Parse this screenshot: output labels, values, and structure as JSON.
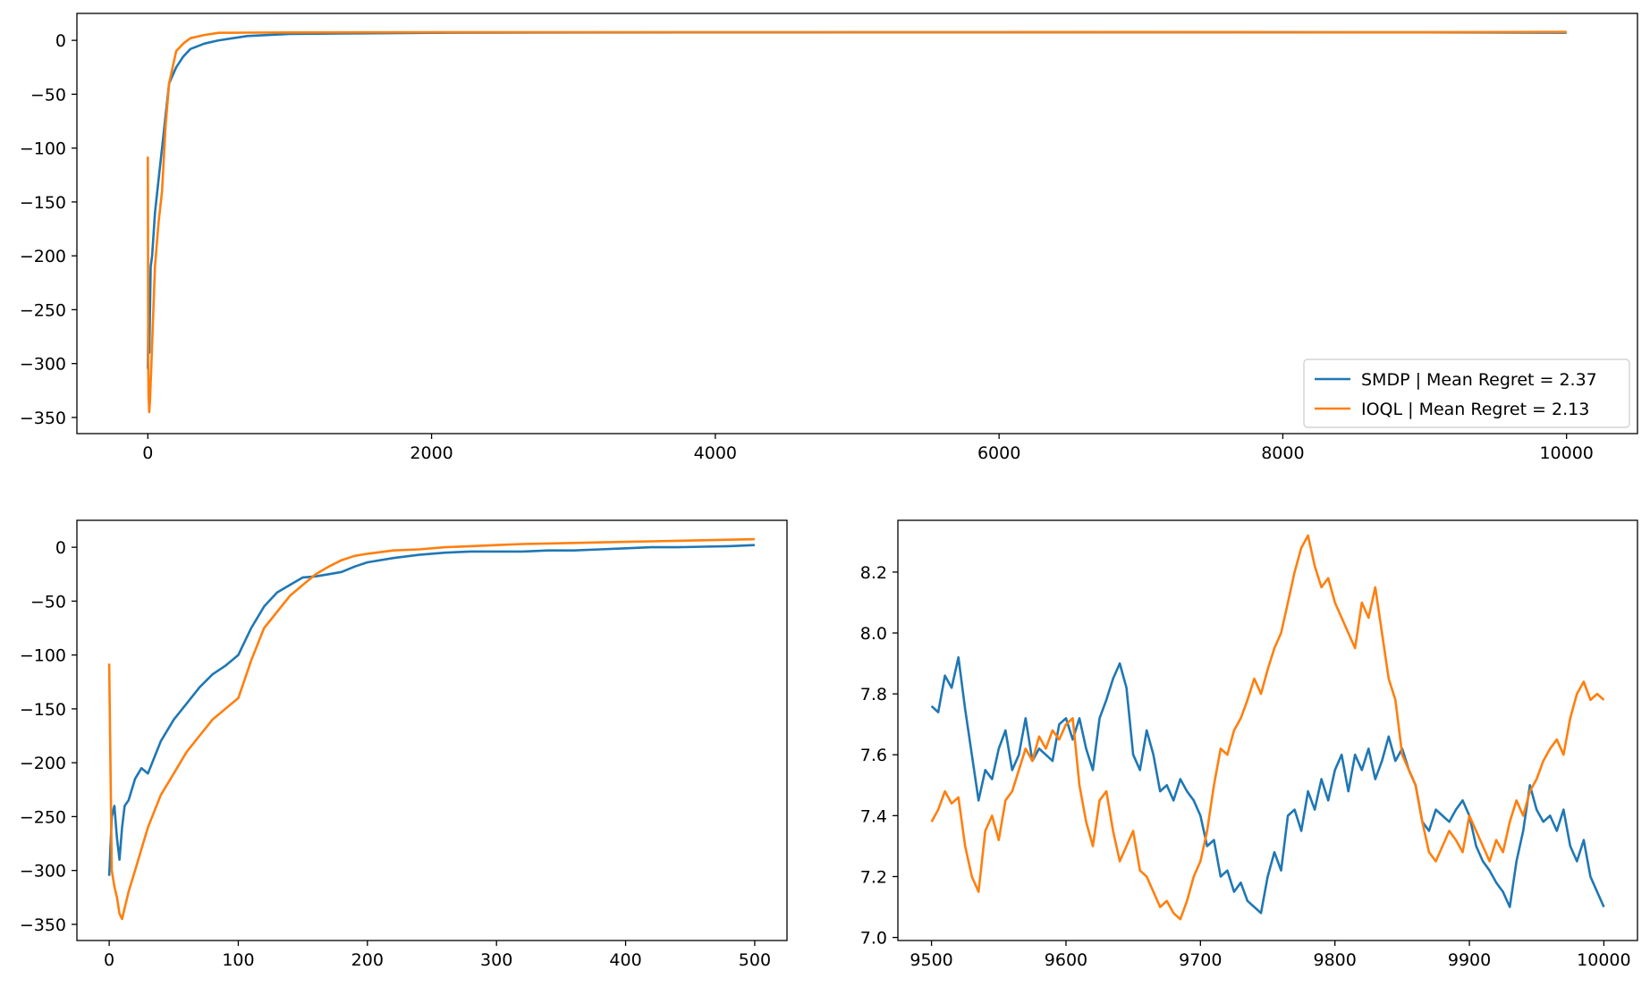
{
  "chart_data": [
    {
      "panel": "top",
      "type": "line",
      "title": "",
      "xlabel": "",
      "ylabel": "",
      "xlim": [
        -500,
        10500
      ],
      "ylim": [
        -365,
        25
      ],
      "xticks": [
        0,
        2000,
        4000,
        6000,
        8000,
        10000
      ],
      "xtick_labels": [
        "0",
        "2000",
        "4000",
        "6000",
        "8000",
        "10000"
      ],
      "yticks": [
        0,
        -50,
        -100,
        -150,
        -200,
        -250,
        -300,
        -350
      ],
      "ytick_labels": [
        "0",
        "−50",
        "−100",
        "−150",
        "−200",
        "−250",
        "−300",
        "−350"
      ],
      "grid": false,
      "legend": {
        "placement": "lower right",
        "entries": [
          {
            "label": "SMDP | Mean Regret = 2.37",
            "color": "#1f77b4"
          },
          {
            "label": "IOQL | Mean Regret = 2.13",
            "color": "#ff7f0e"
          }
        ]
      },
      "series": [
        {
          "name": "SMDP | Mean Regret = 2.37",
          "color": "#1f77b4",
          "x": [
            0,
            5,
            10,
            20,
            30,
            50,
            75,
            100,
            150,
            200,
            250,
            300,
            400,
            500,
            700,
            1000,
            1500,
            2000,
            3000,
            4000,
            5000,
            6000,
            7000,
            8000,
            9000,
            10000
          ],
          "y": [
            -305,
            -240,
            -290,
            -210,
            -200,
            -160,
            -130,
            -100,
            -40,
            -25,
            -15,
            -8,
            -3,
            0,
            4,
            6,
            6.5,
            7,
            7.3,
            7.4,
            7.5,
            7.5,
            7.5,
            7.5,
            7.4,
            7.1
          ]
        },
        {
          "name": "IOQL | Mean Regret = 2.13",
          "color": "#ff7f0e",
          "x": [
            0,
            3,
            5,
            10,
            15,
            25,
            50,
            75,
            100,
            125,
            150,
            200,
            250,
            300,
            400,
            500,
            700,
            1000,
            2000,
            3000,
            4000,
            5000,
            6000,
            7000,
            8000,
            9000,
            10000
          ],
          "y": [
            -108,
            -300,
            -330,
            -345,
            -335,
            -300,
            -210,
            -170,
            -140,
            -80,
            -40,
            -10,
            -3,
            2,
            5,
            7,
            7.2,
            7.3,
            7.5,
            7.6,
            7.6,
            7.6,
            7.6,
            7.7,
            7.6,
            7.5,
            7.8
          ]
        }
      ]
    },
    {
      "panel": "bottom-left",
      "type": "line",
      "title": "",
      "xlabel": "",
      "ylabel": "",
      "xlim": [
        -25,
        525
      ],
      "ylim": [
        -365,
        25
      ],
      "xticks": [
        0,
        100,
        200,
        300,
        400,
        500
      ],
      "xtick_labels": [
        "0",
        "100",
        "200",
        "300",
        "400",
        "500"
      ],
      "yticks": [
        0,
        -50,
        -100,
        -150,
        -200,
        -250,
        -300,
        -350
      ],
      "ytick_labels": [
        "0",
        "−50",
        "−100",
        "−150",
        "−200",
        "−250",
        "−300",
        "−350"
      ],
      "grid": false,
      "series": [
        {
          "color": "#1f77b4",
          "x": [
            0,
            2,
            4,
            6,
            8,
            10,
            12,
            15,
            20,
            25,
            30,
            35,
            40,
            50,
            60,
            70,
            80,
            90,
            100,
            110,
            120,
            130,
            140,
            150,
            160,
            170,
            180,
            190,
            200,
            220,
            240,
            260,
            280,
            300,
            320,
            340,
            360,
            380,
            400,
            420,
            440,
            460,
            480,
            500
          ],
          "y": [
            -305,
            -250,
            -240,
            -270,
            -290,
            -260,
            -240,
            -235,
            -215,
            -205,
            -210,
            -195,
            -180,
            -160,
            -145,
            -130,
            -118,
            -110,
            -100,
            -75,
            -55,
            -42,
            -35,
            -28,
            -27,
            -25,
            -23,
            -18,
            -14,
            -10,
            -7,
            -5,
            -4,
            -4,
            -4,
            -3,
            -3,
            -2,
            -1,
            0,
            0,
            0.5,
            1,
            2
          ]
        },
        {
          "color": "#ff7f0e",
          "x": [
            0,
            2,
            4,
            6,
            8,
            10,
            12,
            15,
            20,
            25,
            30,
            35,
            40,
            50,
            60,
            70,
            80,
            90,
            100,
            110,
            120,
            130,
            140,
            150,
            160,
            170,
            180,
            190,
            200,
            220,
            240,
            260,
            280,
            300,
            320,
            340,
            360,
            380,
            400,
            420,
            440,
            460,
            480,
            500
          ],
          "y": [
            -108,
            -300,
            -315,
            -325,
            -340,
            -345,
            -335,
            -320,
            -300,
            -280,
            -260,
            -245,
            -230,
            -210,
            -190,
            -175,
            -160,
            -150,
            -140,
            -105,
            -75,
            -60,
            -45,
            -35,
            -25,
            -18,
            -12,
            -8,
            -6,
            -3,
            -2,
            0,
            1,
            2,
            3,
            3.5,
            4,
            4.5,
            5,
            5.5,
            6,
            6.5,
            7,
            7.5
          ]
        }
      ]
    },
    {
      "panel": "bottom-right",
      "type": "line",
      "title": "",
      "xlabel": "",
      "ylabel": "",
      "xlim": [
        9475,
        10025
      ],
      "ylim": [
        6.99,
        8.37
      ],
      "xticks": [
        9500,
        9600,
        9700,
        9800,
        9900,
        10000
      ],
      "xtick_labels": [
        "9500",
        "9600",
        "9700",
        "9800",
        "9900",
        "10000"
      ],
      "yticks": [
        7.0,
        7.2,
        7.4,
        7.6,
        7.8,
        8.0,
        8.2
      ],
      "ytick_labels": [
        "7.0",
        "7.2",
        "7.4",
        "7.6",
        "7.8",
        "8.0",
        "8.2"
      ],
      "grid": false,
      "series": [
        {
          "color": "#1f77b4",
          "x": [
            9500,
            9505,
            9510,
            9515,
            9520,
            9525,
            9530,
            9535,
            9540,
            9545,
            9550,
            9555,
            9560,
            9565,
            9570,
            9575,
            9580,
            9585,
            9590,
            9595,
            9600,
            9605,
            9610,
            9615,
            9620,
            9625,
            9630,
            9635,
            9640,
            9645,
            9650,
            9655,
            9660,
            9665,
            9670,
            9675,
            9680,
            9685,
            9690,
            9695,
            9700,
            9705,
            9710,
            9715,
            9720,
            9725,
            9730,
            9735,
            9740,
            9745,
            9750,
            9755,
            9760,
            9765,
            9770,
            9775,
            9780,
            9785,
            9790,
            9795,
            9800,
            9805,
            9810,
            9815,
            9820,
            9825,
            9830,
            9835,
            9840,
            9845,
            9850,
            9855,
            9860,
            9865,
            9870,
            9875,
            9880,
            9885,
            9890,
            9895,
            9900,
            9905,
            9910,
            9915,
            9920,
            9925,
            9930,
            9935,
            9940,
            9945,
            9950,
            9955,
            9960,
            9965,
            9970,
            9975,
            9980,
            9985,
            9990,
            9995,
            10000
          ],
          "y": [
            7.76,
            7.74,
            7.86,
            7.82,
            7.92,
            7.75,
            7.6,
            7.45,
            7.55,
            7.52,
            7.62,
            7.68,
            7.55,
            7.6,
            7.72,
            7.58,
            7.62,
            7.6,
            7.58,
            7.7,
            7.72,
            7.65,
            7.72,
            7.62,
            7.55,
            7.72,
            7.78,
            7.85,
            7.9,
            7.82,
            7.6,
            7.55,
            7.68,
            7.6,
            7.48,
            7.5,
            7.45,
            7.52,
            7.48,
            7.45,
            7.4,
            7.3,
            7.32,
            7.2,
            7.22,
            7.15,
            7.18,
            7.12,
            7.1,
            7.08,
            7.2,
            7.28,
            7.22,
            7.4,
            7.42,
            7.35,
            7.48,
            7.42,
            7.52,
            7.45,
            7.55,
            7.6,
            7.48,
            7.6,
            7.55,
            7.62,
            7.52,
            7.58,
            7.66,
            7.58,
            7.62,
            7.55,
            7.5,
            7.38,
            7.35,
            7.42,
            7.4,
            7.38,
            7.42,
            7.45,
            7.4,
            7.3,
            7.25,
            7.22,
            7.18,
            7.15,
            7.1,
            7.25,
            7.35,
            7.5,
            7.42,
            7.38,
            7.4,
            7.35,
            7.42,
            7.3,
            7.25,
            7.32,
            7.2,
            7.15,
            7.1
          ]
        },
        {
          "color": "#ff7f0e",
          "x": [
            9500,
            9505,
            9510,
            9515,
            9520,
            9525,
            9530,
            9535,
            9540,
            9545,
            9550,
            9555,
            9560,
            9565,
            9570,
            9575,
            9580,
            9585,
            9590,
            9595,
            9600,
            9605,
            9610,
            9615,
            9620,
            9625,
            9630,
            9635,
            9640,
            9645,
            9650,
            9655,
            9660,
            9665,
            9670,
            9675,
            9680,
            9685,
            9690,
            9695,
            9700,
            9705,
            9710,
            9715,
            9720,
            9725,
            9730,
            9735,
            9740,
            9745,
            9750,
            9755,
            9760,
            9765,
            9770,
            9775,
            9780,
            9785,
            9790,
            9795,
            9800,
            9805,
            9810,
            9815,
            9820,
            9825,
            9830,
            9835,
            9840,
            9845,
            9850,
            9855,
            9860,
            9865,
            9870,
            9875,
            9880,
            9885,
            9890,
            9895,
            9900,
            9905,
            9910,
            9915,
            9920,
            9925,
            9930,
            9935,
            9940,
            9945,
            9950,
            9955,
            9960,
            9965,
            9970,
            9975,
            9980,
            9985,
            9990,
            9995,
            10000
          ],
          "y": [
            7.38,
            7.42,
            7.48,
            7.44,
            7.46,
            7.3,
            7.2,
            7.15,
            7.35,
            7.4,
            7.32,
            7.45,
            7.48,
            7.55,
            7.62,
            7.58,
            7.66,
            7.62,
            7.68,
            7.65,
            7.7,
            7.72,
            7.5,
            7.38,
            7.3,
            7.45,
            7.48,
            7.35,
            7.25,
            7.3,
            7.35,
            7.22,
            7.2,
            7.15,
            7.1,
            7.12,
            7.08,
            7.06,
            7.12,
            7.2,
            7.25,
            7.35,
            7.5,
            7.62,
            7.6,
            7.68,
            7.72,
            7.78,
            7.85,
            7.8,
            7.88,
            7.95,
            8.0,
            8.1,
            8.2,
            8.28,
            8.32,
            8.22,
            8.15,
            8.18,
            8.1,
            8.05,
            8.0,
            7.95,
            8.1,
            8.05,
            8.15,
            8.0,
            7.85,
            7.78,
            7.6,
            7.55,
            7.5,
            7.38,
            7.28,
            7.25,
            7.3,
            7.35,
            7.32,
            7.28,
            7.4,
            7.35,
            7.3,
            7.25,
            7.32,
            7.28,
            7.38,
            7.45,
            7.4,
            7.48,
            7.52,
            7.58,
            7.62,
            7.65,
            7.6,
            7.72,
            7.8,
            7.84,
            7.78,
            7.8,
            7.78
          ]
        }
      ]
    }
  ]
}
